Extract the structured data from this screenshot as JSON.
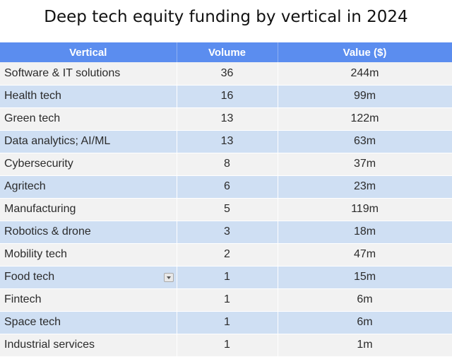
{
  "title": "Deep tech equity funding by vertical in 2024",
  "table": {
    "header": [
      "Vertical",
      "Volume",
      "Value ($)"
    ],
    "rows": [
      [
        "Software & IT solutions",
        "36",
        "244m"
      ],
      [
        "Health tech",
        "16",
        "99m"
      ],
      [
        "Green tech",
        "13",
        "122m"
      ],
      [
        "Data analytics; AI/ML",
        "13",
        "63m"
      ],
      [
        "Cybersecurity",
        "8",
        "37m"
      ],
      [
        "Agritech",
        "6",
        "23m"
      ],
      [
        "Manufacturing",
        "5",
        "119m"
      ],
      [
        "Robotics & drone",
        "3",
        "18m"
      ],
      [
        "Mobility tech",
        "2",
        "47m"
      ],
      [
        "Food tech",
        "1",
        "15m"
      ],
      [
        "Fintech",
        "1",
        "6m"
      ],
      [
        "Space tech",
        "1",
        "6m"
      ],
      [
        "Industrial services",
        "1",
        "1m"
      ]
    ]
  }
}
